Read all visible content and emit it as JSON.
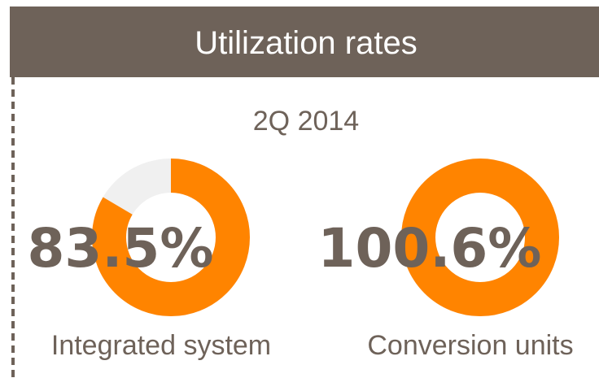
{
  "title": "Utilization rates",
  "subtitle": "2Q 2014",
  "chart_data": [
    {
      "type": "donut",
      "label": "Integrated system",
      "values": [
        83.5
      ],
      "value_labels": [
        "83.5%"
      ],
      "color": "#ff8400",
      "track_color": "#f0f0f0"
    },
    {
      "type": "donut",
      "label": "Conversion units",
      "values": [
        100.6
      ],
      "value_labels": [
        "100.6%"
      ],
      "color": "#ff8400",
      "track_color": "#f0f0f0"
    }
  ]
}
